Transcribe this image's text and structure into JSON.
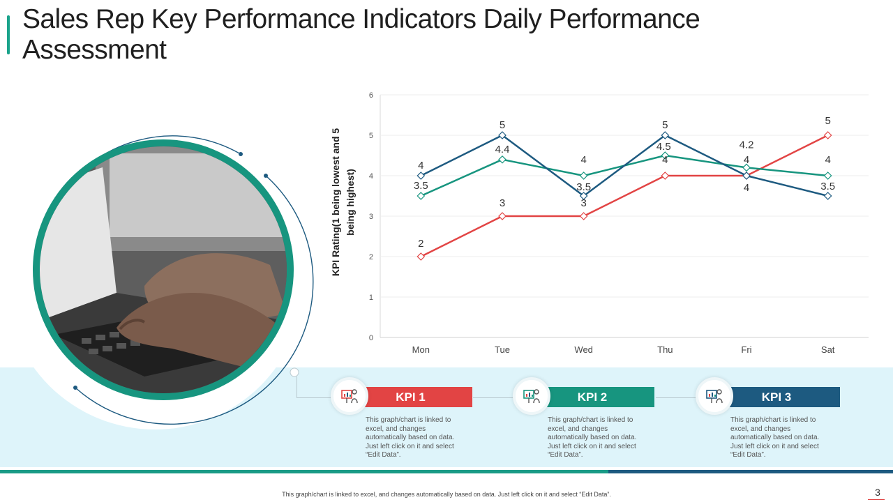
{
  "page": {
    "title": "Sales Rep Key Performance Indicators Daily Performance Assessment",
    "footnote": "This graph/chart is linked to excel, and changes automatically based on data. Just left click on it and select “Edit Data”.",
    "page_number": "3"
  },
  "colors": {
    "accent_green": "#1a9b87",
    "kpi1": "#e24444",
    "kpi2": "#17957f",
    "kpi3": "#1d5a80"
  },
  "kpis": [
    {
      "label": "KPI 1",
      "icon": "presentation-chart-icon",
      "description": "This graph/chart is linked to excel, and changes automatically based on data. Just left click on it and select “Edit Data”."
    },
    {
      "label": "KPI 2",
      "icon": "presentation-chart-icon",
      "description": "This graph/chart is linked to excel, and changes automatically based on data. Just left click on it and select “Edit Data”."
    },
    {
      "label": "KPI 3",
      "icon": "presentation-chart-icon",
      "description": "This graph/chart is linked to excel, and changes automatically based on data. Just left click on it and select “Edit Data”."
    }
  ],
  "chart_data": {
    "type": "line",
    "title": "",
    "xlabel": "",
    "ylabel": "KPI Rating(1 being lowest and 5 being highest)",
    "ylabel_lines": [
      "KPI Rating(1 being lowest and 5",
      "being highest)"
    ],
    "categories": [
      "Mon",
      "Tue",
      "Wed",
      "Thu",
      "Fri",
      "Sat"
    ],
    "ylim": [
      0,
      6
    ],
    "yticks": [
      0,
      1,
      2,
      3,
      4,
      5,
      6
    ],
    "grid": true,
    "series": [
      {
        "name": "KPI 1",
        "color": "#e24444",
        "values": [
          2,
          3,
          3,
          4,
          4,
          5
        ],
        "labels": [
          "2",
          "3",
          "3",
          "4",
          "4",
          "5"
        ]
      },
      {
        "name": "KPI 2",
        "color": "#17957f",
        "values": [
          3.5,
          4.4,
          4,
          4.5,
          4.2,
          4
        ],
        "labels": [
          "3.5",
          "4.4",
          "4",
          "4.5",
          "4.2",
          "4"
        ]
      },
      {
        "name": "KPI 3",
        "color": "#1d5a80",
        "values": [
          4,
          5,
          3.5,
          5,
          4,
          3.5
        ],
        "labels": [
          "4",
          "5",
          "3.5",
          "5",
          "4",
          "3.5"
        ]
      }
    ]
  }
}
